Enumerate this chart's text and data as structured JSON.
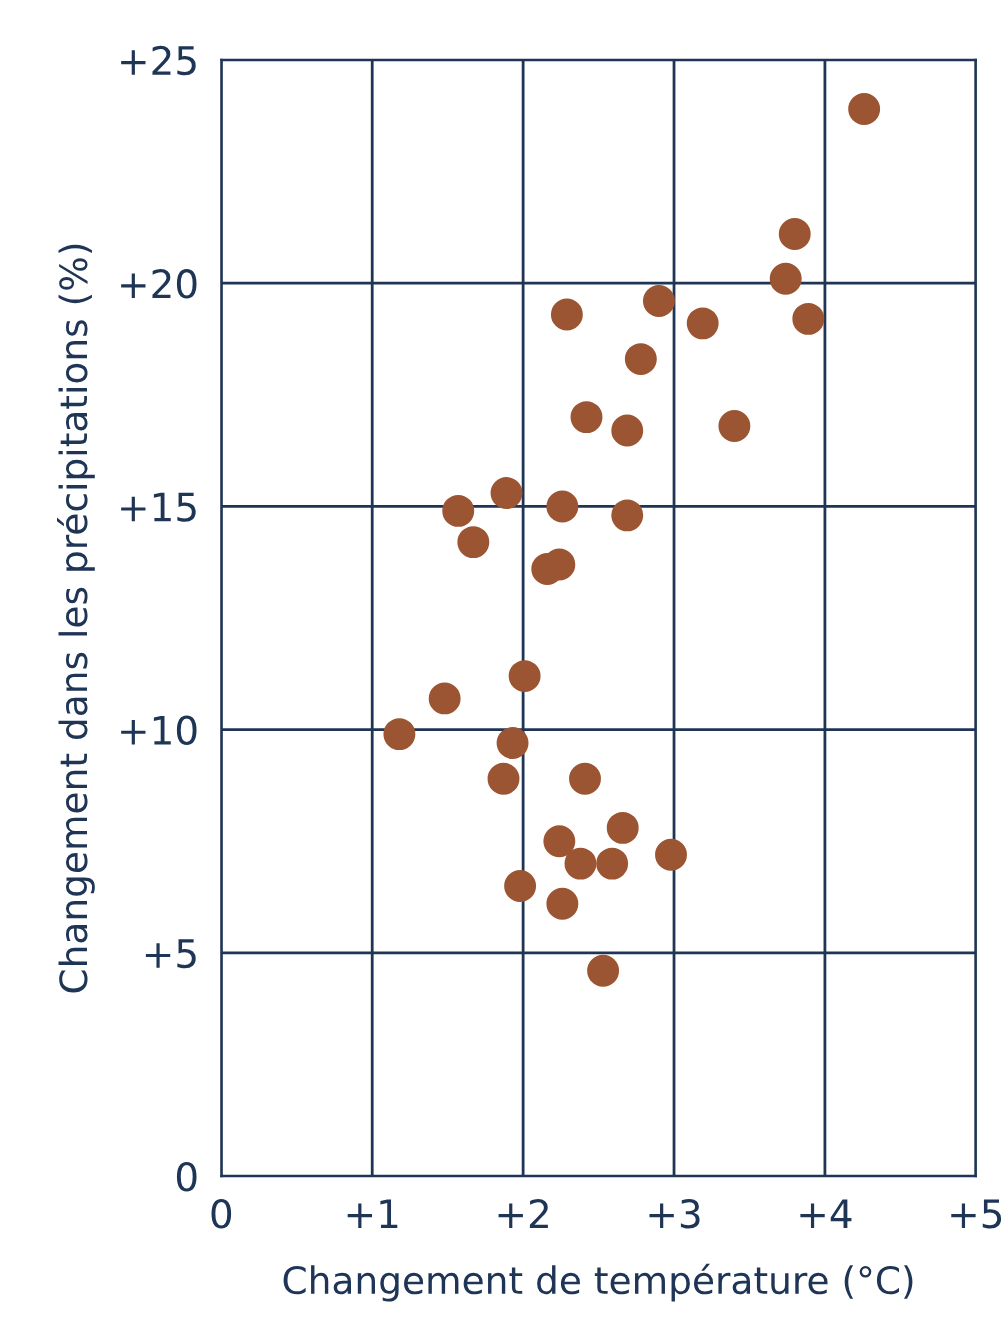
{
  "chart_data": {
    "type": "scatter",
    "xlabel": "Changement de température (°C)",
    "ylabel": "Changement dans les précipitations (%)",
    "x": [
      4.26,
      3.8,
      3.74,
      3.89,
      2.9,
      2.29,
      3.19,
      2.78,
      2.42,
      2.69,
      3.4,
      1.89,
      2.26,
      1.57,
      2.69,
      1.67,
      2.16,
      2.24,
      2.01,
      1.48,
      1.18,
      1.93,
      1.87,
      2.41,
      2.24,
      2.66,
      2.38,
      2.59,
      2.98,
      1.98,
      2.26,
      2.53
    ],
    "series": [
      {
        "color": "#9c5532",
        "values": [
          23.9,
          21.1,
          20.1,
          19.2,
          19.6,
          19.3,
          19.1,
          18.3,
          17.0,
          16.7,
          16.8,
          15.3,
          15.0,
          14.9,
          14.8,
          14.2,
          13.6,
          13.7,
          11.2,
          10.7,
          9.9,
          9.7,
          8.9,
          8.9,
          7.5,
          7.8,
          7.0,
          7.0,
          7.2,
          6.5,
          6.1,
          4.6
        ]
      }
    ],
    "xlim": [
      0,
      5
    ],
    "ylim": [
      0,
      25
    ],
    "xticks": [
      0,
      {
        "value": 1,
        "label": "+1"
      },
      {
        "value": 2,
        "label": "+2"
      },
      {
        "value": 3,
        "label": "+3"
      },
      {
        "value": 4,
        "label": "+4"
      },
      {
        "value": 5,
        "label": "+5"
      }
    ],
    "yticks": [
      0,
      {
        "value": 5,
        "label": "+5"
      },
      {
        "value": 10,
        "label": "+10"
      },
      {
        "value": 15,
        "label": "+15"
      },
      {
        "value": 20,
        "label": "+20"
      },
      {
        "value": 25,
        "label": "+25"
      }
    ],
    "grid": true,
    "marker": "circle"
  }
}
